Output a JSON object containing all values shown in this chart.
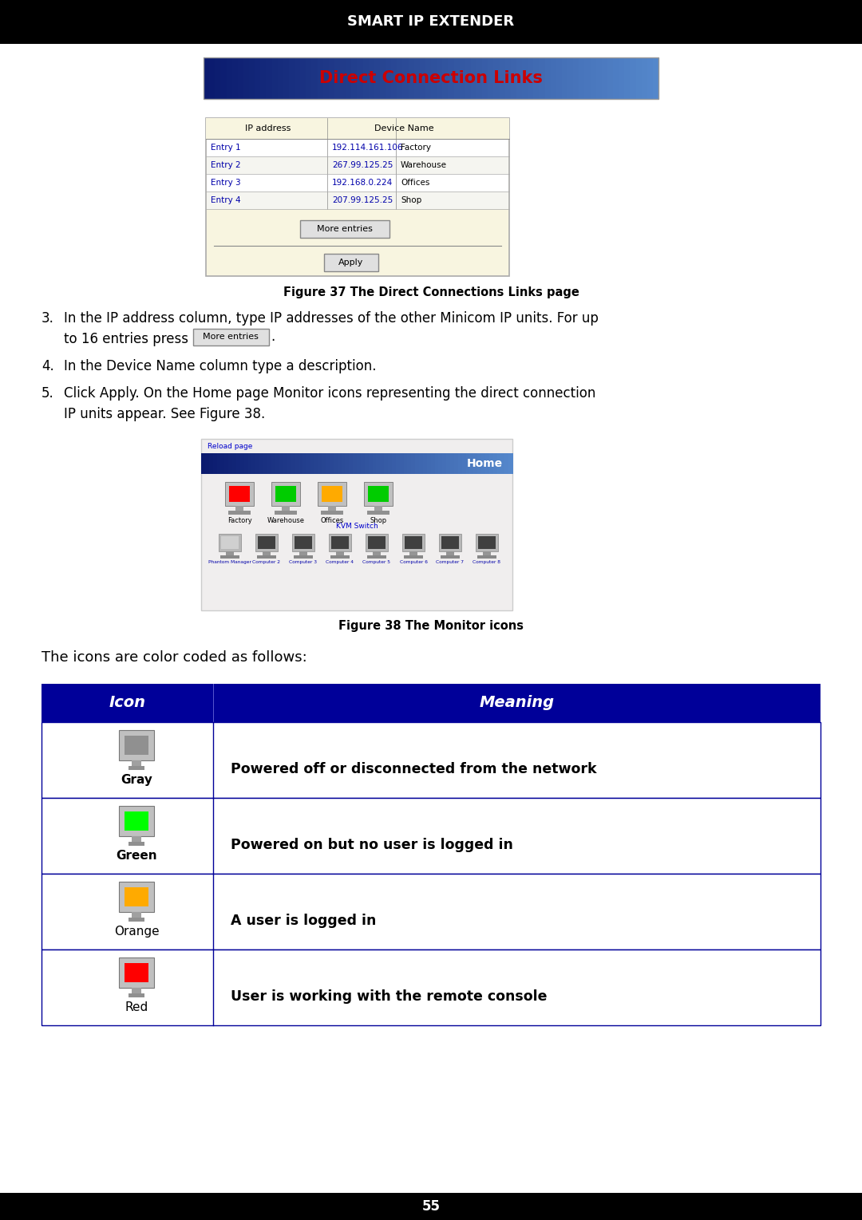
{
  "title": "SMART IP EXTENDER",
  "title_bg": "#000000",
  "title_color": "#ffffff",
  "page_bg": "#ffffff",
  "footer_text": "55",
  "footer_bg": "#000000",
  "footer_color": "#ffffff",
  "dcl_banner_text": "Direct Connection Links",
  "dcl_banner_color": "#cc0000",
  "dcl_banner_bg_left": "#0a1a6e",
  "dcl_banner_bg_right": "#5588cc",
  "table_header_bg": "#000099",
  "table_header_color": "#ffffff",
  "table_border_color": "#000099",
  "icon_colors": [
    "#909090",
    "#00ff00",
    "#ffaa00",
    "#ff0000"
  ],
  "icon_labels": [
    "Gray",
    "Green",
    "Orange",
    "Red"
  ],
  "icon_meanings": [
    "Powered off or disconnected from the network",
    "Powered on but no user is logged in",
    "A user is logged in",
    "User is working with the remote console"
  ],
  "fig37_caption": "Figure 37 The Direct Connections Links page",
  "fig38_caption": "Figure 38 The Monitor icons",
  "color_coded_intro": "The icons are color coded as follows:",
  "home_banner_text": "Home",
  "reload_link": "Reload page",
  "kvm_switch_label": "KVM Switch",
  "monitor_colors_fig": [
    "#ff0000",
    "#00cc00",
    "#ffaa00",
    "#00cc00"
  ],
  "monitor_labels_fig": [
    "Factory",
    "Warehouse",
    "Offices",
    "Shop"
  ],
  "kvm_labels": [
    "Phantom Manager",
    "Computer 2",
    "Computer 3",
    "Computer 4",
    "Computer 5",
    "Computer 6",
    "Computer 7",
    "Computer 8"
  ],
  "tbl_rows": [
    [
      "Entry 1",
      "192.114.161.106",
      "Factory"
    ],
    [
      "Entry 2",
      "267.99.125.25",
      "Warehouse"
    ],
    [
      "Entry 3",
      "192.168.0.224",
      "Offices"
    ],
    [
      "Entry 4",
      "207.99.125.25",
      "Shop"
    ]
  ]
}
